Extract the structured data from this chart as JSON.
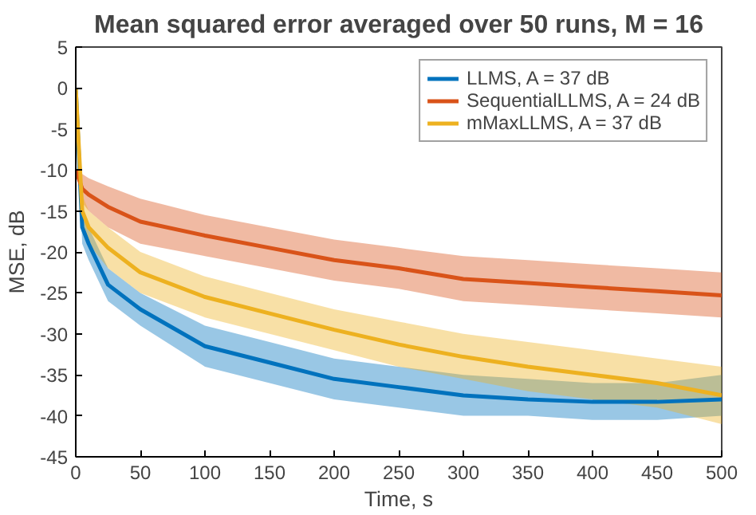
{
  "chart_data": {
    "type": "line",
    "title": "Mean squared error averaged over 50 runs, M = 16",
    "xlabel": "Time, s",
    "ylabel": "MSE, dB",
    "x": [
      0,
      5,
      10,
      25,
      50,
      100,
      150,
      200,
      250,
      300,
      350,
      400,
      450,
      500
    ],
    "series": [
      {
        "name": "LLMS, A = 37 dB",
        "color": "#0072bd",
        "values": [
          0,
          -17,
          -19,
          -24,
          -27,
          -31.5,
          -33.5,
          -35.5,
          -36.5,
          -37.5,
          -38,
          -38.3,
          -38.3,
          -38
        ],
        "lower": [
          0,
          -19,
          -21,
          -26,
          -29,
          -34,
          -36,
          -38,
          -39,
          -40,
          -40,
          -40.5,
          -40.5,
          -40
        ],
        "upper": [
          0,
          -15,
          -17,
          -22,
          -25,
          -29,
          -31,
          -33,
          -34,
          -35,
          -35.5,
          -36,
          -36,
          -35
        ]
      },
      {
        "name": "SequentialLLMS, A = 24 dB",
        "color": "#d95319",
        "values": [
          -10,
          -12.3,
          -13,
          -14.5,
          -16.3,
          -18,
          -19.5,
          -21,
          -22,
          -23.3,
          -23.8,
          -24.3,
          -24.8,
          -25.3
        ],
        "lower": [
          -10,
          -14,
          -15,
          -17,
          -19,
          -20.5,
          -22,
          -23.5,
          -24.5,
          -26,
          -26.5,
          -27,
          -27.5,
          -28
        ],
        "upper": [
          -10,
          -10.5,
          -11,
          -12,
          -13.5,
          -15.5,
          -17,
          -18.5,
          -19.5,
          -20.5,
          -21,
          -21.5,
          -22,
          -22.5
        ]
      },
      {
        "name": "mMaxLLMS, A = 37 dB",
        "color": "#edb120",
        "values": [
          0,
          -15,
          -17,
          -19.5,
          -22.5,
          -25.5,
          -27.5,
          -29.5,
          -31.3,
          -32.8,
          -34,
          -35,
          -36,
          -37.5
        ],
        "lower": [
          0,
          -17,
          -19,
          -22,
          -25,
          -28,
          -30,
          -32,
          -34,
          -35.5,
          -37,
          -38,
          -39,
          -41
        ],
        "upper": [
          0,
          -13,
          -15,
          -17,
          -20,
          -23,
          -25,
          -27,
          -28.5,
          -30,
          -31,
          -32,
          -33,
          -34
        ]
      }
    ],
    "xlim": [
      0,
      500
    ],
    "xticks": [
      0,
      50,
      100,
      150,
      200,
      250,
      300,
      350,
      400,
      450,
      500
    ],
    "ylim": [
      -45,
      5
    ],
    "yticks": [
      -45,
      -40,
      -35,
      -30,
      -25,
      -20,
      -15,
      -10,
      -5,
      0,
      5
    ],
    "grid": false,
    "legend": "top right"
  }
}
